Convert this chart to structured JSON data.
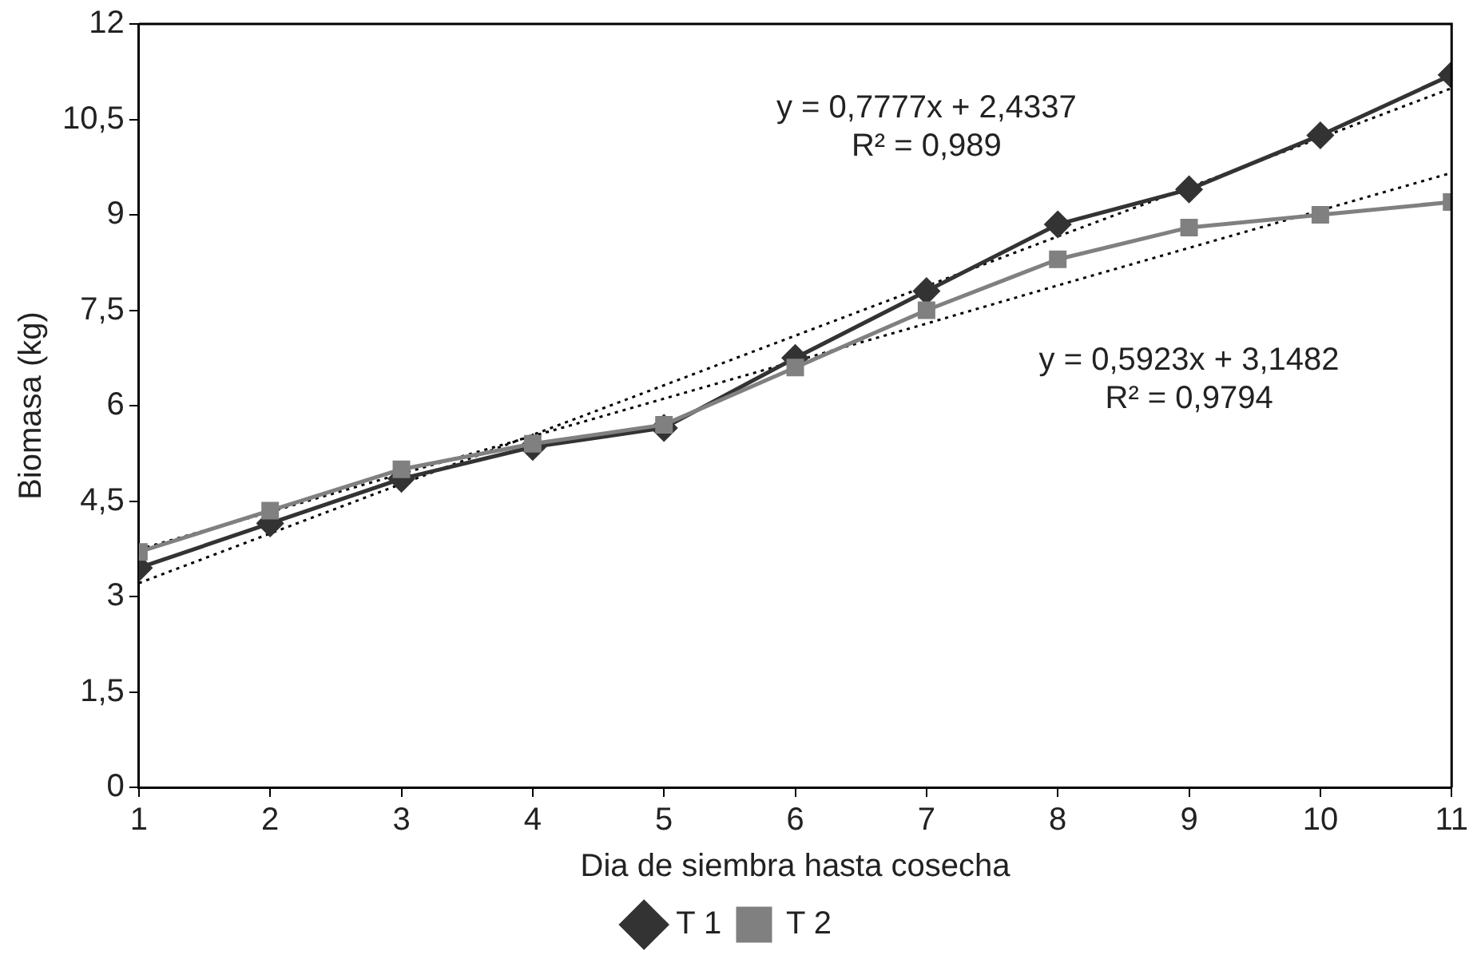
{
  "chart_data": {
    "type": "line",
    "xlabel": "Dia de siembra hasta cosecha",
    "ylabel": "Biomasa (kg)",
    "x": [
      1,
      2,
      3,
      4,
      5,
      6,
      7,
      8,
      9,
      10,
      11
    ],
    "xlim": [
      1,
      11
    ],
    "xticks": [
      1,
      2,
      3,
      4,
      5,
      6,
      7,
      8,
      9,
      10,
      11
    ],
    "ylim": [
      0,
      12
    ],
    "yticks": [
      0,
      {
        "value": 1.5,
        "label": "1,5"
      },
      3,
      {
        "value": 4.5,
        "label": "4,5"
      },
      6,
      {
        "value": 7.5,
        "label": "7,5"
      },
      9,
      {
        "value": 10.5,
        "label": "10,5"
      },
      12
    ],
    "grid": false,
    "legend": "bottom",
    "line_style": "solid",
    "series": [
      {
        "name": "T 1",
        "color": "#333333",
        "marker": "diamond",
        "values": [
          3.45,
          4.15,
          4.85,
          5.35,
          5.65,
          6.75,
          7.8,
          8.85,
          9.4,
          10.25,
          11.2
        ]
      },
      {
        "name": "T 2",
        "color": "#808080",
        "marker": "square",
        "values": [
          3.7,
          4.35,
          5.0,
          5.4,
          5.7,
          6.6,
          7.5,
          8.3,
          8.8,
          9.0,
          9.2
        ]
      },
      {
        "type": "line",
        "color": "#000000",
        "marker": "none",
        "line_style": "dotted",
        "values": [
          3.21,
          3.99,
          4.77,
          5.54,
          6.32,
          7.1,
          7.88,
          8.66,
          9.43,
          10.21,
          10.99
        ]
      },
      {
        "type": "line",
        "color": "#000000",
        "marker": "none",
        "line_style": "dotted",
        "values": [
          3.74,
          4.33,
          4.93,
          5.52,
          6.11,
          6.7,
          7.29,
          7.89,
          8.48,
          9.07,
          9.66
        ]
      }
    ],
    "annotations": [
      "y = 0,7777x + 2,4337\nR² = 0,989",
      "y = 0,5923x + 3,1482\nR² = 0,9794"
    ]
  }
}
